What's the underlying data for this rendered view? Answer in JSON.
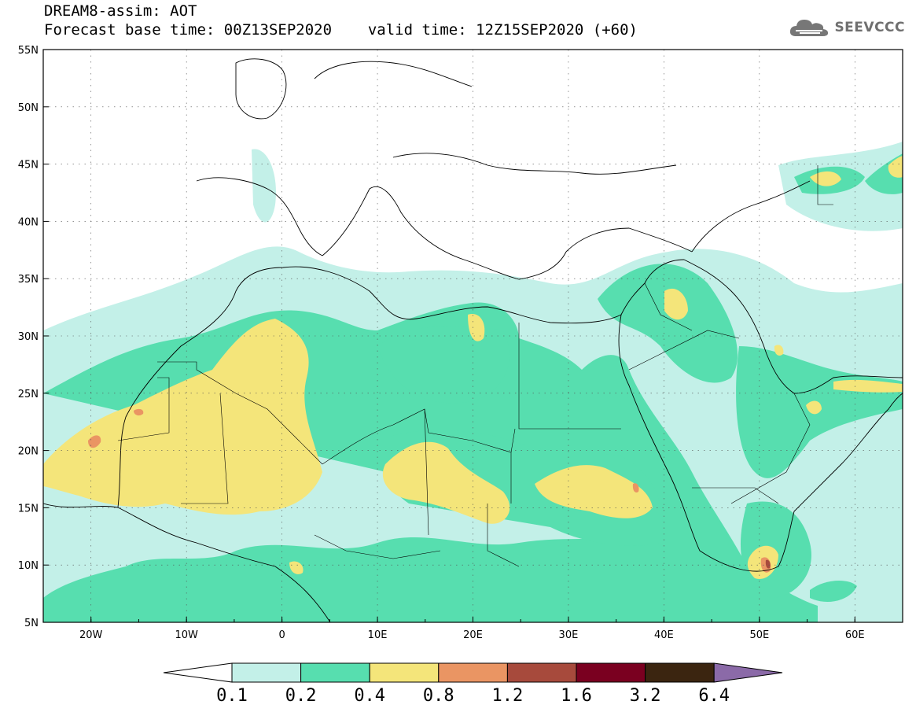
{
  "title": {
    "line1": "DREAM8-assim: AOT",
    "line2_base": "Forecast base time: 00Z13SEP2020",
    "line2_valid": "valid time: 12Z15SEP2020 (+60)"
  },
  "logo": {
    "text": "SEEVCCC",
    "icon": "cloud-icon"
  },
  "map_data": {
    "type": "heatmap",
    "variable": "AOT",
    "lon_range": [
      -25,
      65
    ],
    "lat_range": [
      5,
      55
    ],
    "lon_ticks": [
      "20W",
      "10W",
      "0",
      "10E",
      "20E",
      "30E",
      "40E",
      "50E",
      "60E"
    ],
    "lon_tick_values": [
      -20,
      -10,
      0,
      10,
      20,
      30,
      40,
      50,
      60
    ],
    "lat_ticks": [
      "5N",
      "10N",
      "15N",
      "20N",
      "25N",
      "30N",
      "35N",
      "40N",
      "45N",
      "50N",
      "55N"
    ],
    "lat_tick_values": [
      5,
      10,
      15,
      20,
      25,
      30,
      35,
      40,
      45,
      50,
      55
    ],
    "grid": "dotted"
  },
  "colorbar": {
    "labels": [
      "0.1",
      "0.2",
      "0.4",
      "0.8",
      "1.2",
      "1.6",
      "3.2",
      "6.4"
    ],
    "colors": [
      "#c3f0e8",
      "#57deaf",
      "#f4e57a",
      "#ea9563",
      "#a74a3c",
      "#7a0020",
      "#3b2510",
      "#8b6aa8"
    ]
  }
}
